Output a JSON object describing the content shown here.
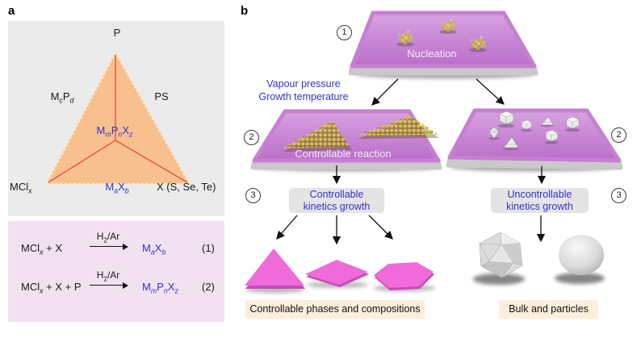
{
  "panels": {
    "a_label": "a",
    "b_label": "b"
  },
  "phase_diagram": {
    "vertex_top": "P",
    "vertex_bottom_left": "MCl<sub><i>x</i></sub>",
    "vertex_bottom_right": "X (S, Se, Te)",
    "edge_left": "M<sub><i>c</i></sub>P<sub><i>d</i></sub>",
    "edge_right": "PS",
    "edge_bottom": "M<sub><i>a</i></sub>X<sub><i>b</i></sub>",
    "center": "M<sub><i>m</i></sub>P<sub><i>n</i></sub>X<sub><i>z</i></sub>"
  },
  "reactions": [
    {
      "reactants": "MCl<sub><i>x</i></sub> + X",
      "condition": "H<sub>2</sub>/Ar",
      "product": "M<sub><i>a</i></sub>X<sub><i>b</i></sub>",
      "number": "(1)"
    },
    {
      "reactants": "MCl<sub><i>x</i></sub> + X + P",
      "condition": "H<sub>2</sub>/Ar",
      "product": "M<sub><i>m</i></sub>P<sub><i>n</i></sub>X<sub><i>z</i></sub>",
      "number": "(2)"
    }
  ],
  "process": {
    "steps": [
      "1",
      "2",
      "3"
    ],
    "nucleation_label": "Nucleation",
    "conditions": "Vapour pressure\nGrowth temperature",
    "controllable_reaction_label": "Controllable reaction",
    "left_box": "Controllable\nkinetics growth",
    "right_box": "Uncontrollable\nkinetics growth",
    "left_caption": "Controllable phases and compositions",
    "right_caption": "Bulk and particles"
  },
  "colors": {
    "accent_blue": "#3333cc",
    "tie_line_red": "#e8402e",
    "triangle_fill": "#f8c08e",
    "triangle_border": "#f8ecc6",
    "panel_a_top_bg": "#ebebeb",
    "panel_a_bottom_bg": "#f2e1f0",
    "substrate_purple": "#c77fd2",
    "flake_pink": "#f06ada",
    "cluster_yellow": "#d9c531",
    "kinetics_box_bg": "#e4e4e4",
    "caption_box_bg": "#fdeedc"
  }
}
